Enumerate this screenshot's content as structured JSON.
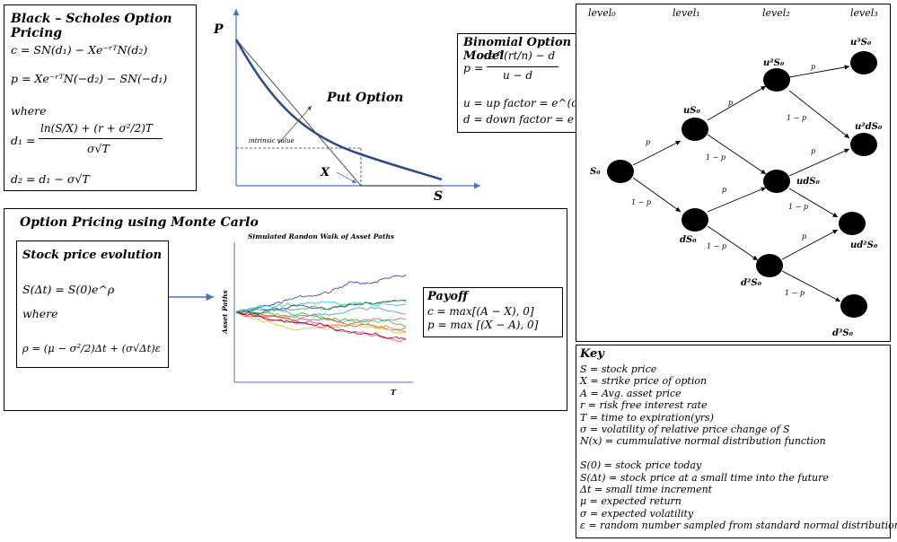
{
  "black_scholes": {
    "title": "Black – Scholes Option Pricing",
    "call": "c = SN(d₁) − Xe⁻ʳᵀN(d₂)",
    "put": "p = Xe⁻ʳᵀN(−d₂) − SN(−d₁)",
    "where": "where",
    "d1_lhs": "d₁ =",
    "d1_num": "ln(S/X) + (r + σ²/2)T",
    "d1_den": "σ√T",
    "d2": "d₂ = d₁ − σ√T"
  },
  "put_option": {
    "title": "Put Option",
    "y_label": "P",
    "x_label": "S",
    "strike_label": "X",
    "intrinsic_label": "intrinsic value"
  },
  "binomial": {
    "title": "Binomial Option Pricing Model",
    "p_lhs": "p =",
    "p_num": "e^(rt/n) − d",
    "p_den": "u − d",
    "u_def": "u = up factor = e^(σ√(rt/n))",
    "d_def": "d = down factor = e^(−σ√(rt/n))"
  },
  "tree": {
    "levels": [
      "level₀",
      "level₁",
      "level₂",
      "level₃"
    ],
    "nodes": {
      "s0": "S₀",
      "us0": "uS₀",
      "ds0": "dS₀",
      "u2s0": "u²S₀",
      "uds0": "udS₀",
      "d2s0": "d²S₀",
      "u3s0": "u³S₀",
      "u2ds0": "u²dS₀",
      "ud2s0": "ud²S₀",
      "d3s0": "d³S₀"
    },
    "p": "p",
    "one_minus_p": "1 − p"
  },
  "monte_carlo": {
    "title": "Option Pricing using Monte Carlo",
    "evolution_title": "Stock price evolution",
    "evolution_eq": "S(Δt) = S(0)e^ρ",
    "where": "where",
    "rho_eq": "ρ = (μ − σ²/2)Δt + (σ√Δt)ε",
    "chart_title": "Simulated Randon Walk of Asset Paths",
    "y_label": "Asset Paths",
    "x_label": "T",
    "payoff_title": "Payoff",
    "payoff_call": "c = max[(A − X), 0]",
    "payoff_put": "p = max [(X − A), 0]"
  },
  "key": {
    "title": "Key",
    "lines": [
      "S = stock price",
      "X = strike price of option",
      "A = Avg. asset price",
      "r = risk free interest rate",
      "T = time to expiration(yrs)",
      "σ = volatility of relative price change of S",
      "N(x) = cummulative normal distribution function",
      "",
      "S(0) = stock price today",
      "S(Δt) = stock price at a small time into the future",
      "Δt = small time increment",
      "μ = expected return",
      "σ = expected volatility",
      "ε = random number sampled from standard normal distribution"
    ]
  },
  "colors": {
    "curve": "#2e4a86",
    "axis": "#4a72c4",
    "arrow": "#4a72c4",
    "paths": [
      "#2a2ad8",
      "#1ec81e",
      "#18c8c8",
      "#9b59d9",
      "#e74c3c",
      "#2c3e50",
      "#c8c828",
      "#ff3fa0",
      "#e67e22",
      "#27ae60",
      "#3498db",
      "#8b0000"
    ]
  }
}
